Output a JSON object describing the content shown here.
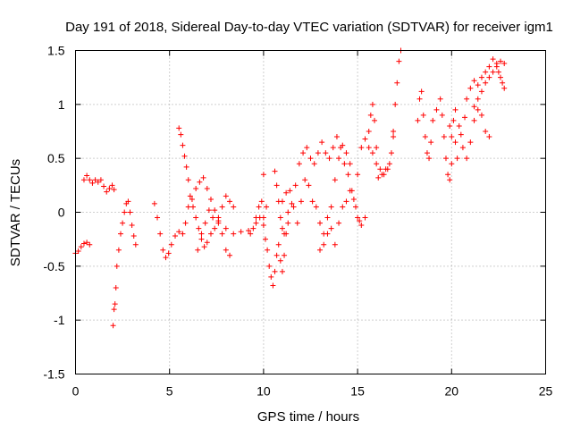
{
  "chart_data": {
    "type": "scatter",
    "title": "Day 191 of 2018, Sidereal Day-to-day VTEC variation (SDTVAR) for receiver igm1",
    "xlabel": "GPS time / hours",
    "ylabel": "SDTVAR / TECUs",
    "xlim": [
      0,
      25
    ],
    "ylim": [
      -1.5,
      1.5
    ],
    "xticks": [
      0,
      5,
      10,
      15,
      20,
      25
    ],
    "yticks": [
      -1.5,
      -1,
      -0.5,
      0,
      0.5,
      1,
      1.5
    ],
    "xtick_labels": [
      "0",
      "5",
      "10",
      "15",
      "20",
      "25"
    ],
    "ytick_labels": [
      "-1.5",
      "-1",
      "-0.5",
      "0",
      "0.5",
      "1",
      "1.5"
    ],
    "grid": true,
    "marker": "+",
    "color": "#ff0000",
    "segments": [
      [
        [
          0.0,
          -0.38
        ],
        [
          0.15,
          -0.36
        ],
        [
          0.3,
          -0.32
        ],
        [
          0.45,
          -0.29
        ],
        [
          0.6,
          -0.28
        ],
        [
          0.75,
          -0.3
        ]
      ],
      [
        [
          0.45,
          0.3
        ],
        [
          0.6,
          0.34
        ],
        [
          0.75,
          0.3
        ],
        [
          0.9,
          0.27
        ],
        [
          1.05,
          0.3
        ],
        [
          1.2,
          0.28
        ],
        [
          1.35,
          0.3
        ],
        [
          1.5,
          0.24
        ],
        [
          1.65,
          0.19
        ],
        [
          1.8,
          0.22
        ],
        [
          1.95,
          0.25
        ],
        [
          2.05,
          0.21
        ]
      ],
      [
        [
          2.0,
          -1.05
        ],
        [
          2.05,
          -0.9
        ],
        [
          2.1,
          -0.85
        ],
        [
          2.15,
          -0.7
        ],
        [
          2.2,
          -0.5
        ],
        [
          2.3,
          -0.35
        ],
        [
          2.4,
          -0.2
        ],
        [
          2.5,
          -0.1
        ],
        [
          2.6,
          0.0
        ],
        [
          2.7,
          0.08
        ],
        [
          2.8,
          0.1
        ],
        [
          2.9,
          0.0
        ],
        [
          3.0,
          -0.12
        ],
        [
          3.1,
          -0.22
        ],
        [
          3.2,
          -0.3
        ]
      ],
      [
        [
          4.2,
          0.08
        ],
        [
          4.35,
          -0.05
        ],
        [
          4.5,
          -0.2
        ],
        [
          4.65,
          -0.35
        ],
        [
          4.8,
          -0.42
        ],
        [
          4.95,
          -0.38
        ],
        [
          5.1,
          -0.3
        ],
        [
          5.3,
          -0.22
        ],
        [
          5.5,
          -0.18
        ],
        [
          5.7,
          -0.2
        ],
        [
          5.85,
          -0.1
        ]
      ],
      [
        [
          5.5,
          0.78
        ],
        [
          5.6,
          0.72
        ],
        [
          5.7,
          0.62
        ],
        [
          5.8,
          0.52
        ],
        [
          5.9,
          0.42
        ],
        [
          6.0,
          0.3
        ],
        [
          6.1,
          0.15
        ],
        [
          6.25,
          0.05
        ],
        [
          6.4,
          -0.05
        ],
        [
          6.55,
          -0.15
        ],
        [
          6.7,
          -0.25
        ],
        [
          6.85,
          -0.32
        ],
        [
          7.0,
          -0.28
        ],
        [
          7.2,
          -0.2
        ],
        [
          7.4,
          -0.15
        ],
        [
          7.6,
          -0.1
        ],
        [
          7.8,
          -0.2
        ],
        [
          8.0,
          -0.35
        ],
        [
          8.2,
          -0.4
        ]
      ],
      [
        [
          6.0,
          0.05
        ],
        [
          6.2,
          0.12
        ],
        [
          6.4,
          0.22
        ],
        [
          6.6,
          0.28
        ],
        [
          6.8,
          0.32
        ],
        [
          7.0,
          0.22
        ],
        [
          7.2,
          0.12
        ],
        [
          7.4,
          0.02
        ],
        [
          7.6,
          -0.05
        ],
        [
          7.8,
          0.05
        ],
        [
          8.0,
          0.15
        ],
        [
          8.2,
          0.1
        ],
        [
          8.4,
          0.05
        ]
      ],
      [
        [
          6.5,
          -0.35
        ],
        [
          6.7,
          -0.2
        ],
        [
          6.9,
          -0.1
        ],
        [
          7.1,
          0.02
        ],
        [
          7.3,
          -0.05
        ],
        [
          7.6,
          -0.08
        ],
        [
          8.0,
          -0.15
        ],
        [
          8.4,
          -0.2
        ],
        [
          8.8,
          -0.18
        ],
        [
          9.2,
          -0.17
        ],
        [
          9.6,
          -0.1
        ],
        [
          9.8,
          -0.05
        ],
        [
          10.0,
          -0.05
        ],
        [
          10.15,
          0.05
        ]
      ],
      [
        [
          9.3,
          -0.2
        ],
        [
          9.45,
          -0.15
        ],
        [
          9.6,
          -0.05
        ],
        [
          9.75,
          0.05
        ],
        [
          9.9,
          0.1
        ],
        [
          10.0,
          0.35
        ]
      ],
      [
        [
          10.0,
          -0.12
        ],
        [
          10.1,
          -0.25
        ],
        [
          10.2,
          -0.35
        ],
        [
          10.3,
          -0.5
        ],
        [
          10.4,
          -0.6
        ],
        [
          10.5,
          -0.68
        ],
        [
          10.6,
          -0.55
        ],
        [
          10.7,
          -0.4
        ],
        [
          10.8,
          -0.3
        ],
        [
          10.9,
          -0.45
        ],
        [
          11.0,
          -0.55
        ],
        [
          11.1,
          -0.4
        ],
        [
          11.2,
          -0.2
        ],
        [
          11.3,
          0.0
        ]
      ],
      [
        [
          10.6,
          0.38
        ],
        [
          10.7,
          0.25
        ],
        [
          10.8,
          0.1
        ],
        [
          10.9,
          -0.05
        ],
        [
          11.0,
          -0.15
        ],
        [
          11.1,
          -0.2
        ],
        [
          11.3,
          -0.1
        ],
        [
          11.5,
          0.08
        ],
        [
          11.7,
          0.25
        ],
        [
          11.9,
          0.45
        ],
        [
          12.1,
          0.55
        ],
        [
          12.3,
          0.6
        ],
        [
          12.5,
          0.5
        ],
        [
          12.7,
          0.45
        ],
        [
          12.9,
          0.55
        ],
        [
          13.1,
          0.65
        ],
        [
          13.3,
          0.55
        ],
        [
          13.5,
          0.5
        ],
        [
          13.7,
          0.6
        ],
        [
          13.9,
          0.7
        ],
        [
          14.1,
          0.6
        ],
        [
          14.3,
          0.45
        ],
        [
          14.5,
          0.35
        ],
        [
          14.7,
          0.2
        ],
        [
          14.9,
          0.05
        ],
        [
          15.1,
          -0.08
        ]
      ],
      [
        [
          11.0,
          0.1
        ],
        [
          11.2,
          0.18
        ],
        [
          11.4,
          0.2
        ],
        [
          11.6,
          0.05
        ],
        [
          11.8,
          -0.1
        ],
        [
          12.0,
          0.1
        ],
        [
          12.2,
          0.3
        ],
        [
          12.4,
          0.25
        ],
        [
          12.6,
          0.1
        ],
        [
          12.8,
          0.05
        ],
        [
          13.0,
          -0.1
        ],
        [
          13.2,
          -0.3
        ],
        [
          13.4,
          -0.2
        ],
        [
          13.6,
          0.05
        ],
        [
          13.8,
          0.3
        ],
        [
          14.0,
          0.5
        ],
        [
          14.2,
          0.62
        ],
        [
          14.4,
          0.55
        ],
        [
          14.6,
          0.45
        ]
      ],
      [
        [
          13.0,
          -0.35
        ],
        [
          13.2,
          -0.2
        ],
        [
          13.4,
          -0.05
        ],
        [
          13.6,
          -0.15
        ],
        [
          13.8,
          -0.3
        ],
        [
          14.0,
          -0.1
        ],
        [
          14.2,
          0.05
        ],
        [
          14.4,
          0.1
        ],
        [
          14.6,
          0.2
        ],
        [
          14.8,
          0.12
        ],
        [
          15.0,
          -0.05
        ],
        [
          15.2,
          -0.12
        ],
        [
          15.4,
          -0.05
        ]
      ],
      [
        [
          15.0,
          0.35
        ],
        [
          15.2,
          0.6
        ],
        [
          15.4,
          0.68
        ],
        [
          15.6,
          0.6
        ],
        [
          15.8,
          0.55
        ],
        [
          16.0,
          0.45
        ],
        [
          16.1,
          0.32
        ],
        [
          16.3,
          0.35
        ],
        [
          16.5,
          0.4
        ],
        [
          16.7,
          0.45
        ],
        [
          16.9,
          0.7
        ],
        [
          17.0,
          1.0
        ],
        [
          17.1,
          1.2
        ],
        [
          17.2,
          1.4
        ],
        [
          17.3,
          1.5
        ]
      ],
      [
        [
          15.6,
          0.75
        ],
        [
          15.7,
          0.9
        ],
        [
          15.8,
          1.0
        ],
        [
          15.9,
          0.85
        ],
        [
          16.0,
          0.6
        ],
        [
          16.2,
          0.4
        ],
        [
          16.4,
          0.35
        ],
        [
          16.6,
          0.4
        ],
        [
          16.8,
          0.55
        ],
        [
          16.9,
          0.75
        ]
      ],
      [
        [
          18.2,
          0.85
        ],
        [
          18.3,
          1.05
        ],
        [
          18.4,
          1.12
        ],
        [
          18.5,
          0.9
        ],
        [
          18.6,
          0.7
        ],
        [
          18.7,
          0.55
        ],
        [
          18.8,
          0.5
        ],
        [
          18.9,
          0.65
        ],
        [
          19.0,
          0.85
        ],
        [
          19.2,
          0.95
        ],
        [
          19.4,
          1.05
        ],
        [
          19.5,
          0.9
        ],
        [
          19.6,
          0.7
        ],
        [
          19.7,
          0.5
        ],
        [
          19.8,
          0.35
        ],
        [
          19.9,
          0.3
        ],
        [
          20.0,
          0.45
        ],
        [
          20.2,
          0.65
        ]
      ],
      [
        [
          19.9,
          0.8
        ],
        [
          20.0,
          0.7
        ],
        [
          20.1,
          0.85
        ],
        [
          20.2,
          0.95
        ],
        [
          20.4,
          0.8
        ],
        [
          20.6,
          0.6
        ],
        [
          20.8,
          0.5
        ],
        [
          21.0,
          0.65
        ],
        [
          21.2,
          0.85
        ],
        [
          21.4,
          0.95
        ],
        [
          21.6,
          0.9
        ],
        [
          21.8,
          0.75
        ],
        [
          22.0,
          0.7
        ]
      ],
      [
        [
          20.3,
          0.5
        ],
        [
          20.5,
          0.72
        ],
        [
          20.7,
          0.88
        ],
        [
          20.8,
          1.05
        ],
        [
          21.0,
          1.15
        ],
        [
          21.2,
          1.22
        ],
        [
          21.4,
          1.18
        ],
        [
          21.6,
          1.25
        ],
        [
          21.8,
          1.3
        ],
        [
          22.0,
          1.35
        ],
        [
          22.2,
          1.42
        ],
        [
          22.4,
          1.38
        ],
        [
          22.5,
          1.3
        ],
        [
          22.6,
          1.25
        ],
        [
          22.7,
          1.2
        ],
        [
          22.8,
          1.15
        ]
      ],
      [
        [
          21.2,
          0.98
        ],
        [
          21.4,
          1.05
        ],
        [
          21.6,
          1.12
        ],
        [
          21.8,
          1.2
        ],
        [
          22.0,
          1.25
        ],
        [
          22.2,
          1.3
        ],
        [
          22.4,
          1.35
        ],
        [
          22.6,
          1.4
        ],
        [
          22.8,
          1.38
        ]
      ]
    ]
  }
}
